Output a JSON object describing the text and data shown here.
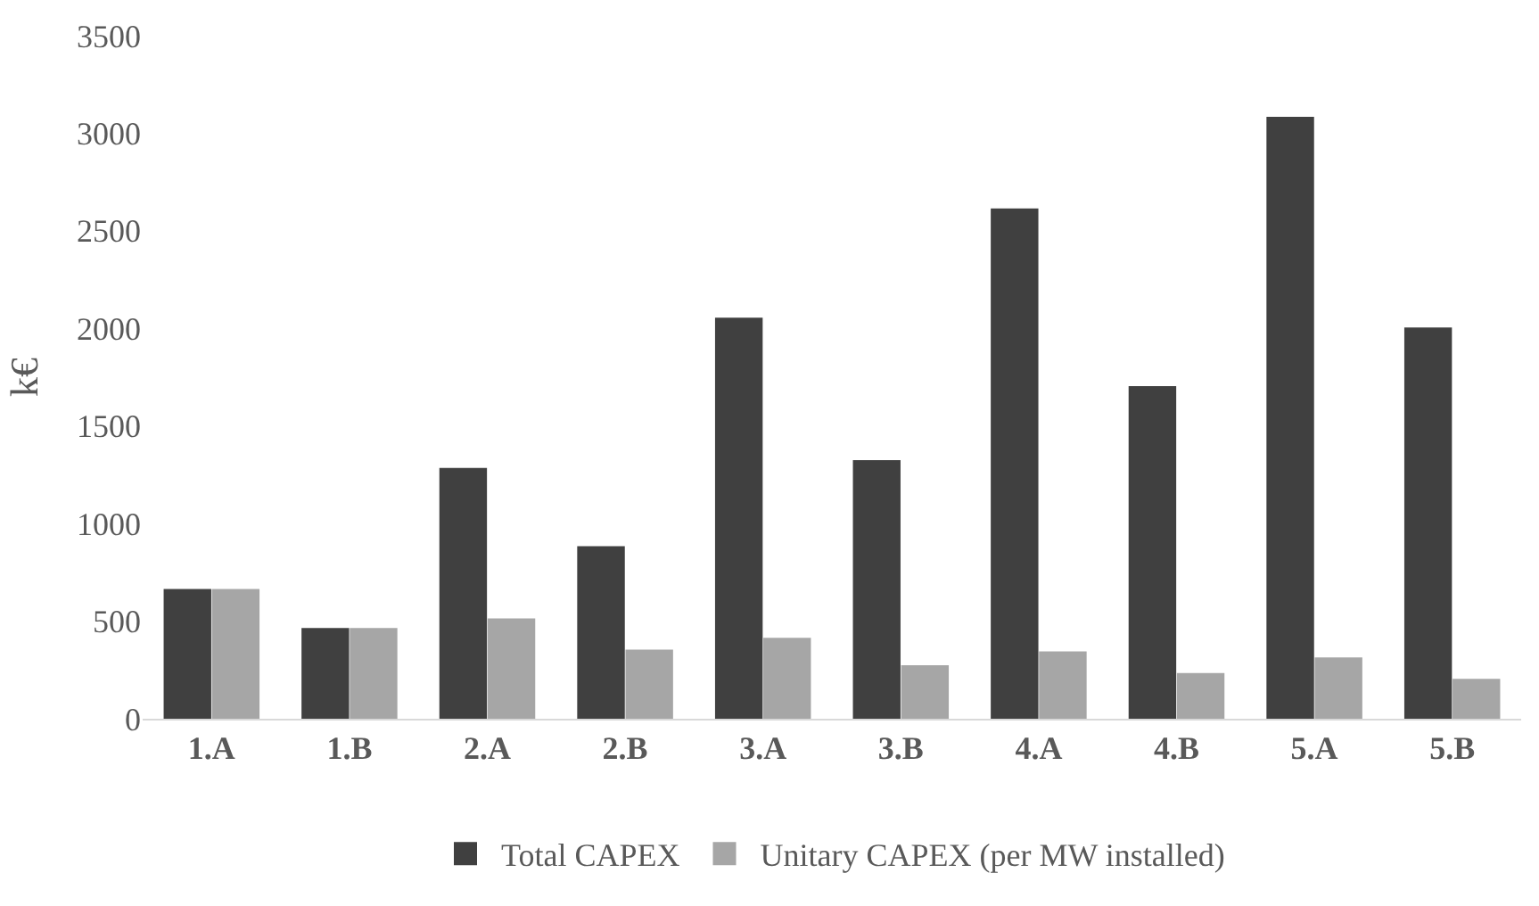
{
  "chart_data": {
    "type": "bar",
    "ylabel": "k€",
    "categories": [
      "1.A",
      "1.B",
      "2.A",
      "2.B",
      "3.A",
      "3.B",
      "4.A",
      "4.B",
      "5.A",
      "5.B"
    ],
    "series": [
      {
        "name": "Total CAPEX",
        "color": "#404040",
        "values": [
          660,
          460,
          1280,
          880,
          2050,
          1320,
          2610,
          1700,
          3080,
          2000
        ]
      },
      {
        "name": "Unitary CAPEX (per MW installed)",
        "color": "#a6a6a6",
        "values": [
          660,
          460,
          510,
          350,
          410,
          270,
          340,
          230,
          310,
          200
        ]
      }
    ],
    "ylim": [
      0,
      3500
    ],
    "yticks": [
      0,
      500,
      1000,
      1500,
      2000,
      2500,
      3000,
      3500
    ],
    "grid": false,
    "legend": "bottom"
  }
}
